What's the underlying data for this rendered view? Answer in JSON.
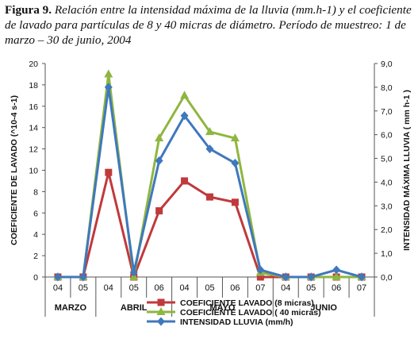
{
  "caption": {
    "label": "Figura 9.",
    "text": "Relación entre la intensidad máxima de la lluvia (mm.h-1) y el coeficiente de lavado para partículas de 8 y 40 micras de diámetro. Período de muestreo: 1 de marzo – 30 de junio, 2004"
  },
  "chart_data": {
    "type": "line",
    "categories": [
      "04",
      "05",
      "04",
      "05",
      "06",
      "04",
      "05",
      "06",
      "07",
      "04",
      "05",
      "06",
      "07"
    ],
    "groups": [
      {
        "label": "MARZO",
        "count": 2
      },
      {
        "label": "ABRIL",
        "count": 3
      },
      {
        "label": "MAYO",
        "count": 4
      },
      {
        "label": "JUNIO",
        "count": 4
      }
    ],
    "ylabel": "COEFICIENTE DE LAVADO (^10-4 s-1)",
    "y2label": "INTENSIDAD MÁXIMA LLUVIA ( mm h-1 )",
    "ylim": [
      0,
      20
    ],
    "y2lim": [
      0,
      9
    ],
    "yticks": [
      "0",
      "2",
      "4",
      "6",
      "8",
      "10",
      "12",
      "14",
      "16",
      "18",
      "20"
    ],
    "y2ticks": [
      "0,0",
      "1,0",
      "2,0",
      "3,0",
      "4,0",
      "5,0",
      "6,0",
      "7,0",
      "8,0",
      "9,0"
    ],
    "grid": false,
    "legend_position": "bottom",
    "series": [
      {
        "name": "COEFICIENTE LAVADO (8 micras)",
        "axis": "left",
        "color": "#c0393b",
        "marker": "square",
        "values": [
          0,
          0,
          9.8,
          0,
          6.2,
          9.0,
          7.5,
          7.0,
          0,
          0,
          0,
          0,
          0
        ]
      },
      {
        "name": "COEFICIENTE LAVADO ( 40 micras)",
        "axis": "left",
        "color": "#8fb63f",
        "marker": "triangle",
        "values": [
          0,
          0,
          19.0,
          0,
          13.0,
          17.0,
          13.6,
          13.0,
          0.4,
          0,
          0,
          0,
          0
        ]
      },
      {
        "name": "INTENSIDAD LLUVIA (mm/h)",
        "axis": "right",
        "color": "#3f78bd",
        "marker": "diamond",
        "values": [
          0,
          0,
          8.0,
          0.2,
          4.9,
          6.8,
          5.4,
          4.8,
          0.3,
          0,
          0,
          0.3,
          0
        ]
      }
    ]
  }
}
